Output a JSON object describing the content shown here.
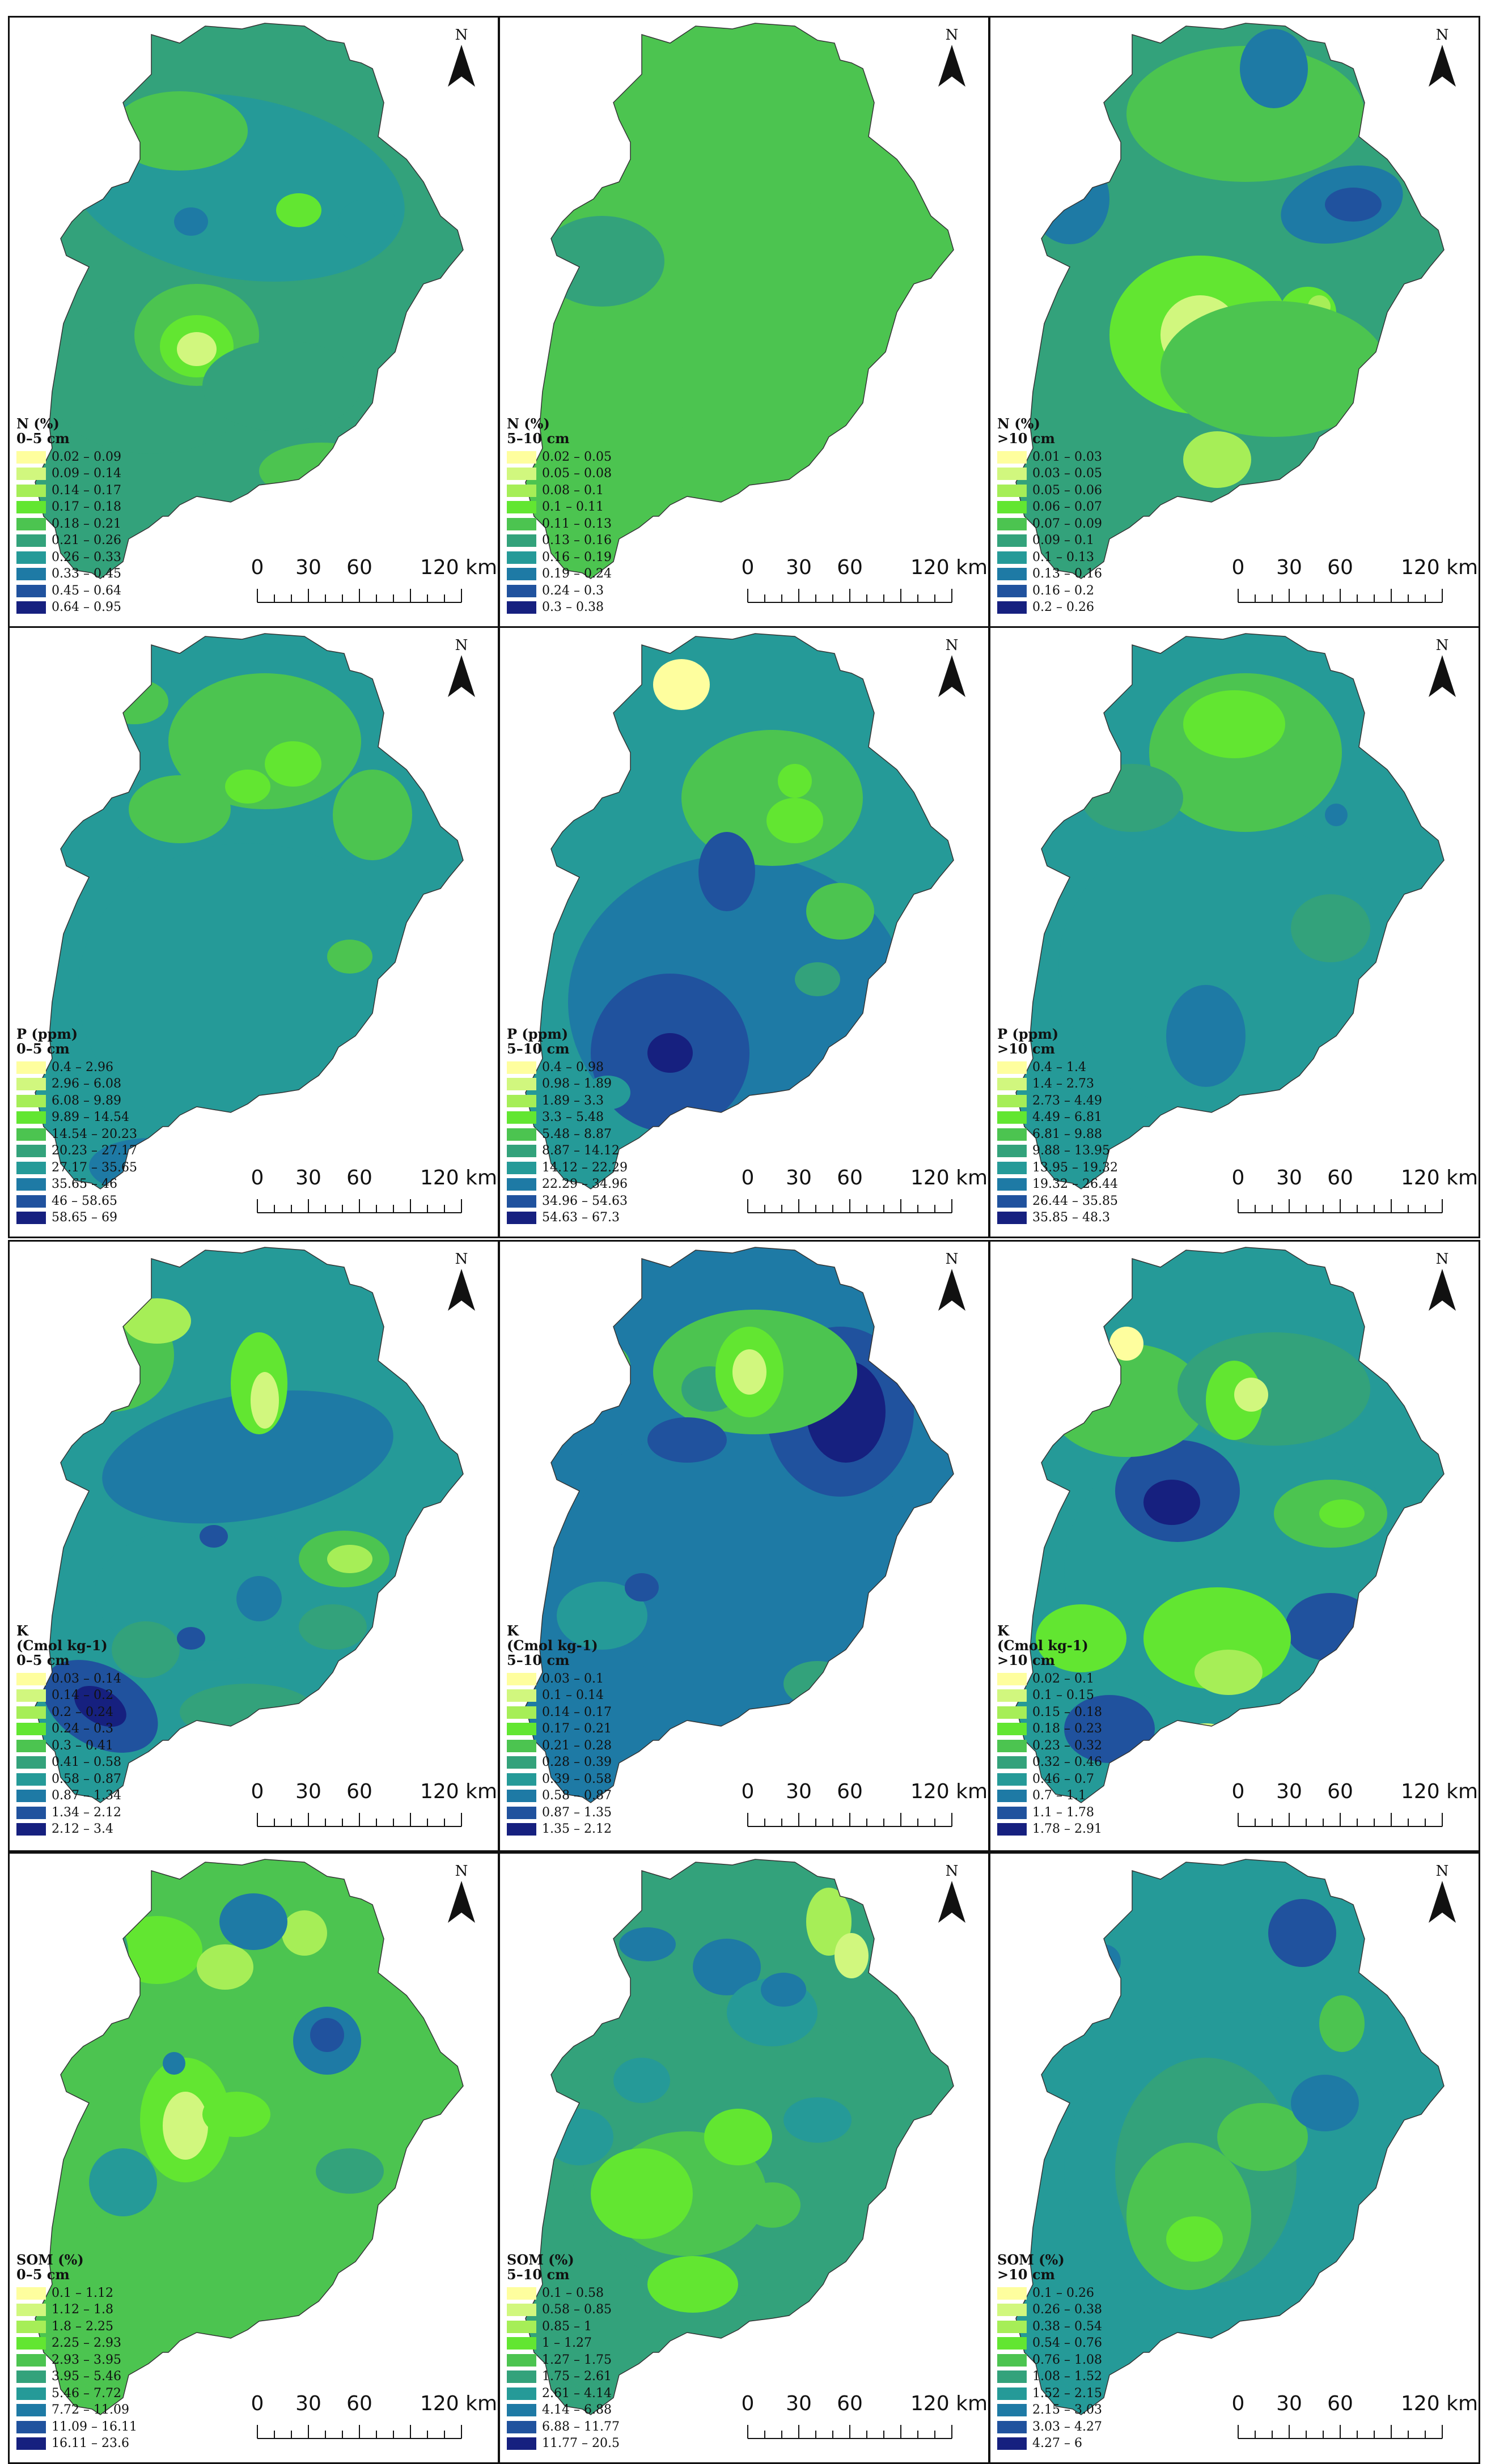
{
  "scale_bar": {
    "ticks": [
      "0",
      "30",
      "60",
      "120 km"
    ]
  },
  "north_label": "N",
  "map_colors": [
    "#fefe9e",
    "#d1f77e",
    "#a6ee57",
    "#62e631",
    "#4cc450",
    "#33a27b",
    "#259a98",
    "#1e7aa5",
    "#20529e",
    "#16207f"
  ],
  "panels": [
    {
      "title": "N (%)",
      "depth": "0–5 cm",
      "icons": [
        "north-arrow-icon",
        "scale-bar"
      ],
      "legend": [
        "0.02 – 0.09",
        "0.09 – 0.14",
        "0.14 – 0.17",
        "0.17 – 0.18",
        "0.18 – 0.21",
        "0.21 – 0.26",
        "0.26 – 0.33",
        "0.33 – 0.45",
        "0.45 – 0.64",
        "0.64 – 0.95"
      ]
    },
    {
      "title": "N (%)",
      "depth": "5–10 cm",
      "legend": [
        "0.02 – 0.05",
        "0.05 – 0.08",
        "0.08 – 0.1",
        "0.1 – 0.11",
        "0.11 – 0.13",
        "0.13 – 0.16",
        "0.16 – 0.19",
        "0.19 – 0.24",
        "0.24 – 0.3",
        "0.3 – 0.38"
      ]
    },
    {
      "title": "N (%)",
      "depth": ">10 cm",
      "legend": [
        "0.01 – 0.03",
        "0.03 – 0.05",
        "0.05 – 0.06",
        "0.06 – 0.07",
        "0.07 – 0.09",
        "0.09 – 0.1",
        "0.1 – 0.13",
        "0.13 – 0.16",
        "0.16 – 0.2",
        "0.2 – 0.26"
      ]
    },
    {
      "title": "P (ppm)",
      "depth": "0–5 cm",
      "legend": [
        "0.4 – 2.96",
        "2.96 – 6.08",
        "6.08 – 9.89",
        "9.89 – 14.54",
        "14.54 – 20.23",
        "20.23 – 27.17",
        "27.17 – 35.65",
        "35.65 – 46",
        "46 – 58.65",
        "58.65 – 69"
      ]
    },
    {
      "title": "P (ppm)",
      "depth": "5–10 cm",
      "legend": [
        "0.4 – 0.98",
        "0.98 – 1.89",
        "1.89 – 3.3",
        "3.3 – 5.48",
        "5.48 – 8.87",
        "8.87 – 14.12",
        "14.12 – 22.29",
        "22.29 – 34.96",
        "34.96 – 54.63",
        "54.63 – 67.3"
      ]
    },
    {
      "title": "P (ppm)",
      "depth": ">10 cm",
      "legend": [
        "0.4 – 1.4",
        "1.4 – 2.73",
        "2.73 – 4.49",
        "4.49 – 6.81",
        "6.81 – 9.88",
        "9.88 – 13.95",
        "13.95 – 19.32",
        "19.32 – 26.44",
        "26.44 – 35.85",
        "35.85 – 48.3"
      ]
    },
    {
      "title": "K",
      "subtitle": "(Cmol kg-1)",
      "depth": "0–5 cm",
      "legend": [
        "0.03 – 0.14",
        "0.14 – 0.2",
        "0.2 – 0.24",
        "0.24 – 0.3",
        "0.3 – 0.41",
        "0.41 – 0.58",
        "0.58 – 0.87",
        "0.87 – 1.34",
        "1.34 – 2.12",
        "2.12 – 3.4"
      ]
    },
    {
      "title": "K",
      "subtitle": "(Cmol kg-1)",
      "depth": "5–10 cm",
      "legend": [
        "0.03 – 0.1",
        "0.1 – 0.14",
        "0.14 – 0.17",
        "0.17 – 0.21",
        "0.21 – 0.28",
        "0.28 – 0.39",
        "0.39 – 0.58",
        "0.58 – 0.87",
        "0.87 – 1.35",
        "1.35 – 2.12"
      ]
    },
    {
      "title": "K",
      "subtitle": "(Cmol kg-1)",
      "depth": ">10 cm",
      "legend": [
        "0.02 – 0.1",
        "0.1 – 0.15",
        "0.15 – 0.18",
        "0.18 – 0.23",
        "0.23 – 0.32",
        "0.32 – 0.46",
        "0.46 – 0.7",
        "0.7 – 1.1",
        "1.1 – 1.78",
        "1.78 – 2.91"
      ]
    },
    {
      "title": "SOM (%)",
      "depth": "0–5 cm",
      "legend": [
        "0.1 – 1.12",
        "1.12 – 1.8",
        "1.8 – 2.25",
        "2.25 – 2.93",
        "2.93 – 3.95",
        "3.95 – 5.46",
        "5.46 – 7.72",
        "7.72 – 11.09",
        "11.09 – 16.11",
        "16.11 – 23.6"
      ]
    },
    {
      "title": "SOM (%)",
      "depth": "5–10 cm",
      "legend": [
        "0.1 – 0.58",
        "0.58 – 0.85",
        "0.85 – 1",
        "1 – 1.27",
        "1.27 – 1.75",
        "1.75 – 2.61",
        "2.61 – 4.14",
        "4.14 – 6.88",
        "6.88 – 11.77",
        "11.77 – 20.5"
      ]
    },
    {
      "title": "SOM (%)",
      "depth": ">10 cm",
      "legend": [
        "0.1 – 0.26",
        "0.26 – 0.38",
        "0.38 – 0.54",
        "0.54 – 0.76",
        "0.76 – 1.08",
        "1.08 – 1.52",
        "1.52 – 2.15",
        "2.15 – 3.03",
        "3.03 – 4.27",
        "4.27 – 6"
      ]
    }
  ]
}
